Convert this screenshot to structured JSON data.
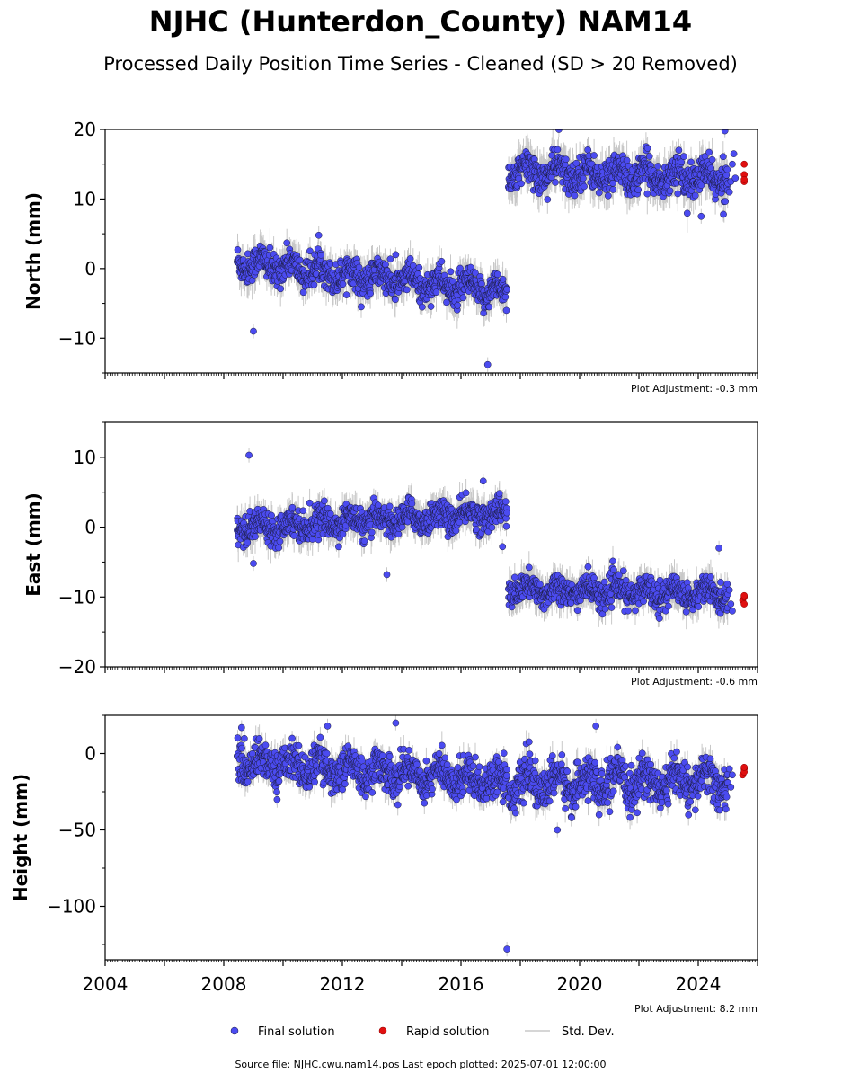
{
  "title": "NJHC (Hunterdon_County) NAM14",
  "subtitle": "Processed Daily Position Time Series - Cleaned (SD > 20 Removed)",
  "legend": {
    "placement": "bottom-center"
  },
  "colors": {
    "final": "#4b4bf0",
    "rapid": "#e01010",
    "std_dev": "#c8c8c8"
  },
  "footer": "Source file: NJHC.cwu.nam14.pos  Last epoch plotted: 2025-07-01 12:00:00",
  "chart_data": [
    {
      "type": "scatter",
      "ylabel": "North (mm)",
      "xlim": [
        2004,
        2026
      ],
      "ylim": [
        -15,
        20
      ],
      "ytick_values": [
        -10,
        0,
        10,
        20
      ],
      "yticks": [
        "−10",
        "0",
        "10",
        "20"
      ],
      "xtick_values": [
        2004,
        2008,
        2012,
        2016,
        2020,
        2024
      ],
      "xticks": [],
      "grid": false,
      "adjustment": "Plot Adjustment: -0.3 mm",
      "segments": [
        {
          "x": [
            2008.45,
            2017.55
          ],
          "y": [
            1.0,
            -3.5
          ],
          "sd": 1.1,
          "amp": 1.0,
          "err": 2.0
        },
        {
          "x": [
            2017.6,
            2025.0
          ],
          "y": [
            14.0,
            13.0
          ],
          "sd": 1.2,
          "amp": 1.0,
          "err": 2.2
        }
      ],
      "outliers": [
        {
          "x": 2009.0,
          "y": -9.0
        },
        {
          "x": 2016.9,
          "y": -13.8
        },
        {
          "x": 2013.8,
          "y": 2.0
        },
        {
          "x": 2019.3,
          "y": 20.0
        },
        {
          "x": 2024.1,
          "y": 7.5
        },
        {
          "x": 2024.9,
          "y": 19.8
        },
        {
          "x": 2024.85,
          "y": 7.8
        }
      ],
      "series": [
        {
          "name": "Final solution",
          "x": [
            2025.05,
            2025.1,
            2025.15,
            2025.2,
            2025.25
          ],
          "y": [
            11.0,
            12.5,
            15.0,
            16.5,
            13.0
          ]
        },
        {
          "name": "Rapid solution",
          "x": [
            2025.55,
            2025.55,
            2025.55,
            2025.55
          ],
          "y": [
            15.0,
            13.5,
            12.5,
            12.8
          ]
        }
      ]
    },
    {
      "type": "scatter",
      "ylabel": "East (mm)",
      "xlim": [
        2004,
        2026
      ],
      "ylim": [
        -20,
        15
      ],
      "ytick_values": [
        -20,
        -10,
        0,
        10
      ],
      "yticks": [
        "−20",
        "−10",
        "0",
        "10"
      ],
      "xtick_values": [
        2004,
        2008,
        2012,
        2016,
        2020,
        2024
      ],
      "xticks": [],
      "grid": false,
      "adjustment": "Plot Adjustment: -0.6 mm",
      "segments": [
        {
          "x": [
            2008.45,
            2017.55
          ],
          "y": [
            0.0,
            2.0
          ],
          "sd": 1.0,
          "amp": 0.8,
          "err": 1.8
        },
        {
          "x": [
            2017.6,
            2025.0
          ],
          "y": [
            -9.0,
            -9.5
          ],
          "sd": 1.0,
          "amp": 0.8,
          "err": 1.8
        }
      ],
      "outliers": [
        {
          "x": 2008.85,
          "y": 10.3
        },
        {
          "x": 2009.0,
          "y": -5.2
        },
        {
          "x": 2013.5,
          "y": -6.8
        },
        {
          "x": 2016.75,
          "y": 6.6
        },
        {
          "x": 2024.7,
          "y": -3.0
        },
        {
          "x": 2017.4,
          "y": -2.8
        }
      ],
      "series": [
        {
          "name": "Final solution",
          "x": [
            2025.05,
            2025.1,
            2025.15
          ],
          "y": [
            -9.0,
            -11.0,
            -12.0
          ]
        },
        {
          "name": "Rapid solution",
          "x": [
            2025.5,
            2025.55,
            2025.55,
            2025.55
          ],
          "y": [
            -10.5,
            -10.0,
            -11.0,
            -9.8
          ]
        }
      ]
    },
    {
      "type": "scatter",
      "ylabel": "Height (mm)",
      "xlim": [
        2004,
        2026
      ],
      "ylim": [
        -135,
        25
      ],
      "ytick_values": [
        -100,
        -50,
        0
      ],
      "yticks": [
        "−100",
        "−50",
        "0"
      ],
      "xtick_values": [
        2004,
        2008,
        2012,
        2016,
        2020,
        2024
      ],
      "xticks": [
        "2004",
        "2008",
        "2012",
        "2016",
        "2020",
        "2024"
      ],
      "grid": false,
      "adjustment": "Plot Adjustment: 8.2 mm",
      "segments": [
        {
          "x": [
            2008.45,
            2017.55
          ],
          "y": [
            -5.0,
            -18.0
          ],
          "sd": 6.0,
          "amp": 5.0,
          "err": 7.0
        },
        {
          "x": [
            2017.6,
            2025.0
          ],
          "y": [
            -20.0,
            -18.0
          ],
          "sd": 6.5,
          "amp": 7.0,
          "err": 7.5
        }
      ],
      "outliers": [
        {
          "x": 2017.55,
          "y": -128.0
        },
        {
          "x": 2013.8,
          "y": 20.0
        },
        {
          "x": 2019.25,
          "y": -50.0
        },
        {
          "x": 2020.55,
          "y": 18.0
        },
        {
          "x": 2011.5,
          "y": 18.0
        },
        {
          "x": 2008.6,
          "y": 17.0
        }
      ],
      "series": [
        {
          "name": "Final solution",
          "x": [
            2025.05,
            2025.1,
            2025.15
          ],
          "y": [
            -10.0,
            -22.0,
            -14.0
          ]
        },
        {
          "name": "Rapid solution",
          "x": [
            2025.5,
            2025.55,
            2025.55,
            2025.55
          ],
          "y": [
            -14.0,
            -10.0,
            -12.0,
            -9.0
          ]
        }
      ]
    }
  ],
  "legend_items": [
    {
      "label": "Final solution",
      "kind": "final"
    },
    {
      "label": "Rapid solution",
      "kind": "rapid"
    },
    {
      "label": "Std. Dev.",
      "kind": "sd"
    }
  ]
}
